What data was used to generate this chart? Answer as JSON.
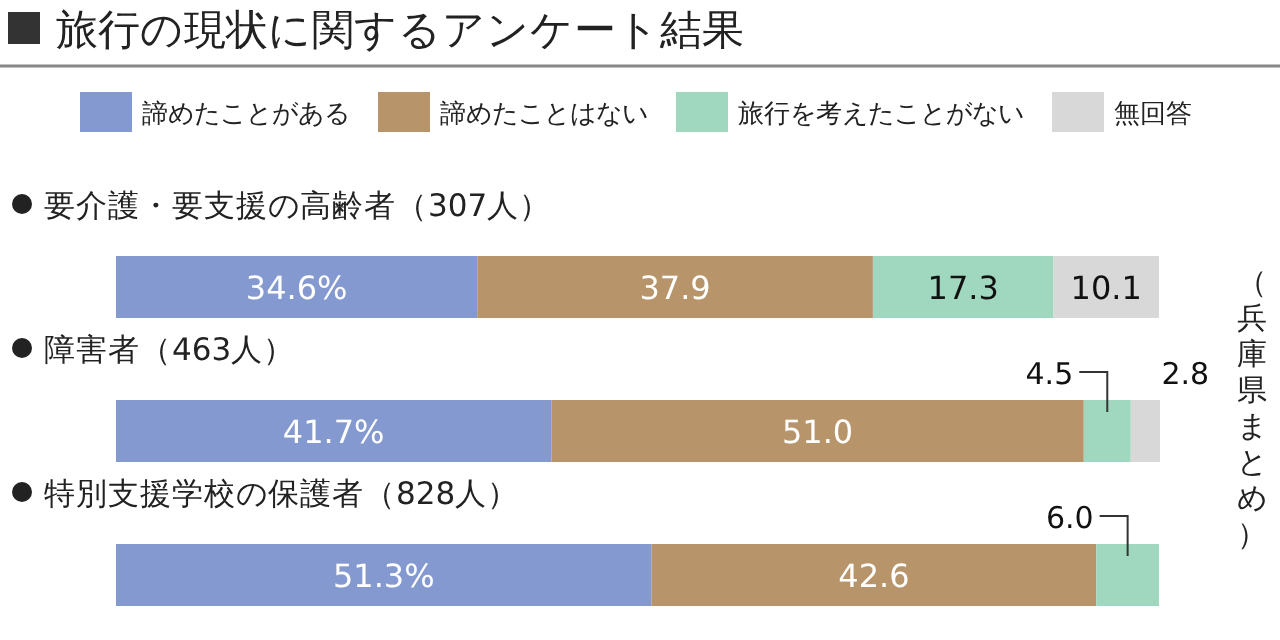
{
  "chart_data": {
    "type": "bar",
    "orientation": "horizontal",
    "stacked": true,
    "title": "旅行の現状に関するアンケート結果",
    "categories": [
      "要介護・要支援の高齢者（307人）",
      "障害者（463人）",
      "特別支援学校の保護者（828人）"
    ],
    "series": [
      {
        "name": "諦めたことがある",
        "color": "#8399cf",
        "values": [
          34.6,
          41.7,
          51.3
        ],
        "value_labels": [
          "34.6%",
          "41.7%",
          "51.3%"
        ]
      },
      {
        "name": "諦めたことはない",
        "color": "#b8946a",
        "values": [
          37.9,
          51.0,
          42.6
        ],
        "value_labels": [
          "37.9",
          "51.0",
          "42.6"
        ]
      },
      {
        "name": "旅行を考えたことがない",
        "color": "#9fd8bf",
        "values": [
          17.3,
          4.5,
          6.0
        ],
        "value_labels": [
          "17.3",
          "4.5",
          "6.0"
        ]
      },
      {
        "name": "無回答",
        "color": "#d8d8d8",
        "values": [
          10.1,
          2.8,
          null
        ],
        "value_labels": [
          "10.1",
          "2.8",
          null
        ]
      }
    ],
    "legend": "top",
    "annotations": [
      "（兵庫県まとめ）"
    ]
  }
}
